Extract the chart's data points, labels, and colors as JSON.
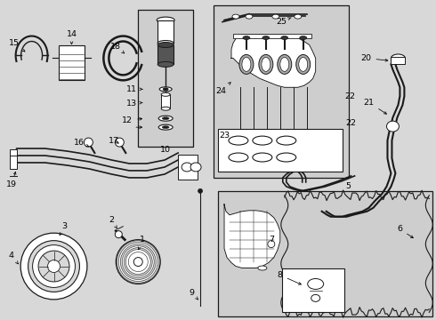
{
  "bg_color": "#d8d8d8",
  "white": "#ffffff",
  "line_color": "#1a1a1a",
  "box_bg": "#d0d0d0",
  "fig_width": 4.9,
  "fig_height": 3.6,
  "dpi": 100,
  "label_fs": 6.8
}
